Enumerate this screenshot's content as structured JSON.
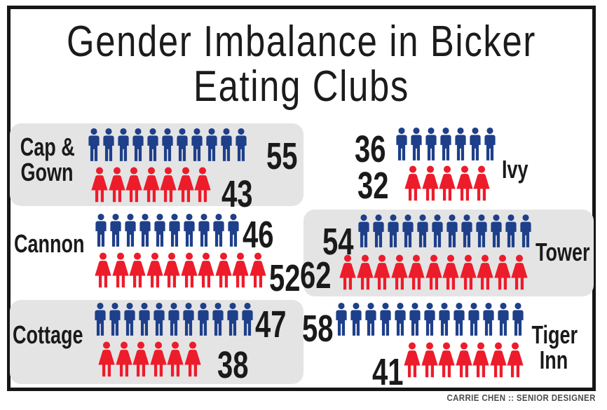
{
  "title": {
    "line1": "Gender Imbalance in Bicker",
    "line2": "Eating Clubs"
  },
  "credit": "CARRIE CHEN :: SENIOR DESIGNER",
  "colors": {
    "male": "#1e3f8a",
    "female": "#ed1c2b",
    "highlight_box": "#e4e4e5",
    "text": "#1a1a1a",
    "credit_text": "#4c4c4c",
    "border": "#161616"
  },
  "chart_data": {
    "type": "pictogram",
    "title": "Gender Imbalance in Bicker Eating Clubs",
    "legend": {
      "male_color": "#1e3f8a",
      "female_color": "#ed1c2b"
    },
    "clubs": [
      {
        "id": "capgown",
        "name": "Cap & Gown",
        "label_lines": [
          "Cap &",
          "Gown"
        ],
        "male": 55,
        "female": 43,
        "male_icons": 11,
        "female_icons": 7,
        "highlighted": true
      },
      {
        "id": "cannon",
        "name": "Cannon",
        "label_lines": [
          "Cannon"
        ],
        "male": 46,
        "female": 52,
        "male_icons": 10,
        "female_icons": 10,
        "highlighted": false
      },
      {
        "id": "cottage",
        "name": "Cottage",
        "label_lines": [
          "Cottage"
        ],
        "male": 47,
        "female": 38,
        "male_icons": 11,
        "female_icons": 6,
        "highlighted": true
      },
      {
        "id": "ivy",
        "name": "Ivy",
        "label_lines": [
          "Ivy"
        ],
        "male": 36,
        "female": 32,
        "male_icons": 7,
        "female_icons": 5,
        "highlighted": false
      },
      {
        "id": "tower",
        "name": "Tower",
        "label_lines": [
          "Tower"
        ],
        "male": 54,
        "female": 62,
        "male_icons": 12,
        "female_icons": 11,
        "highlighted": true
      },
      {
        "id": "tigerinn",
        "name": "Tiger Inn",
        "label_lines": [
          "Tiger",
          "Inn"
        ],
        "male": 58,
        "female": 41,
        "male_icons": 13,
        "female_icons": 7,
        "highlighted": false
      }
    ]
  }
}
